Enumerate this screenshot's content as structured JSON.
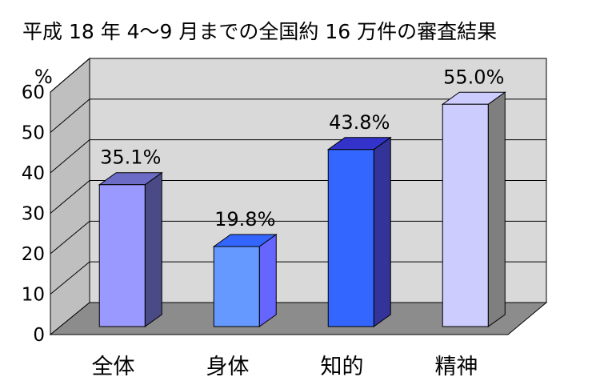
{
  "chart_data": {
    "type": "bar",
    "title": "平成 18 年 4～9 月までの全国約 16 万件の審査結果",
    "ylabel": "%",
    "xlabel": "",
    "ylim": [
      0,
      60
    ],
    "yticks": [
      0,
      10,
      20,
      30,
      40,
      50,
      60
    ],
    "categories": [
      "全体",
      "身体",
      "知的",
      "精神"
    ],
    "values": [
      35.1,
      19.8,
      43.8,
      55.0
    ],
    "data_labels": [
      "35.1%",
      "19.8%",
      "43.8%",
      "55.0%"
    ],
    "grid": true,
    "three_d": true,
    "colors": {
      "bar_fronts": [
        "#9999ff",
        "#6699ff",
        "#3366ff",
        "#ccccff"
      ],
      "bar_sides": [
        "#4a4a86",
        "#6666ff",
        "#333399",
        "#7f7f7f"
      ],
      "bar_tops": [
        "#6c6cc6",
        "#3366ff",
        "#3333cc",
        "#ccccff"
      ],
      "plot_back": "#d9d9d9",
      "side_wall": "#bfbfbf",
      "floor": "#8c8c8c",
      "gridline": "#000000"
    }
  }
}
